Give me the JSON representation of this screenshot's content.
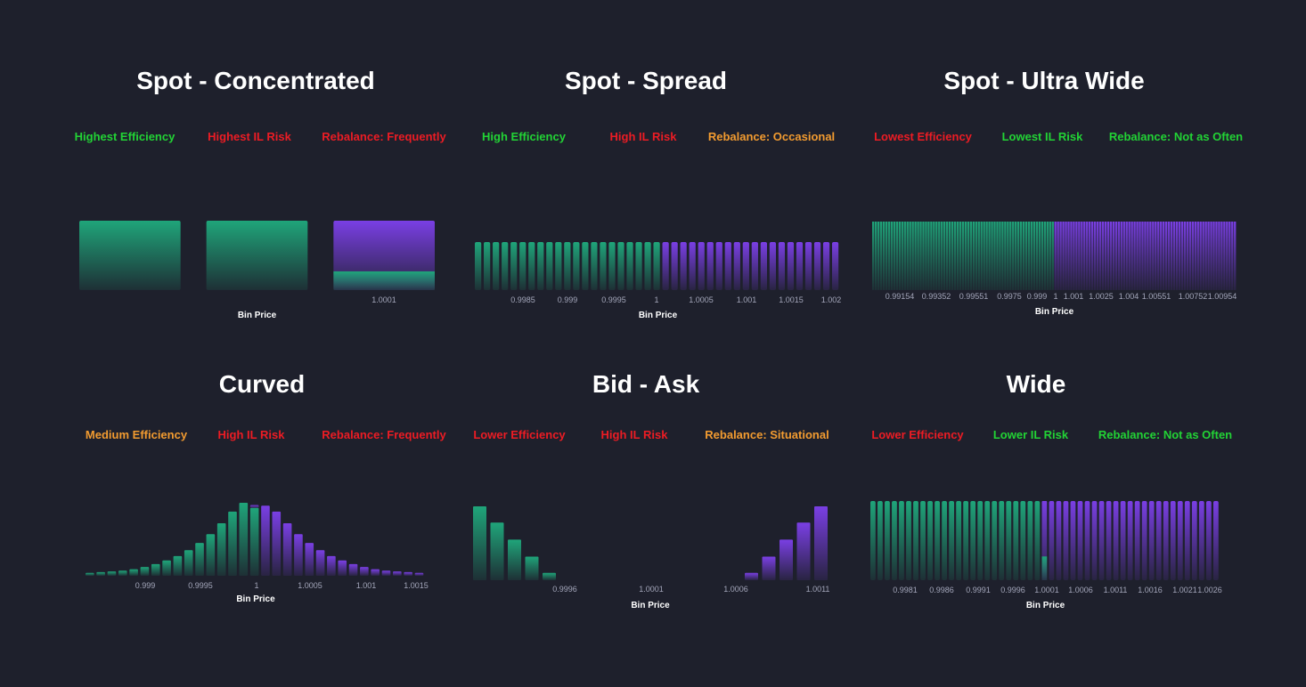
{
  "colors": {
    "background": "#1e202c",
    "green_bar": "#1fa57a",
    "purple_bar": "#7a3fe4",
    "good": "#22d335",
    "bad": "#ec1c24",
    "medium": "#f29b30",
    "tick_text": "#a3a6ba"
  },
  "panels": [
    {
      "id": "spot-concentrated",
      "title": "Spot - Concentrated",
      "metrics": [
        {
          "text": "Highest Efficiency",
          "level": "green"
        },
        {
          "text": "Highest IL Risk",
          "level": "red"
        },
        {
          "text": "Rebalance: Frequently",
          "level": "red"
        }
      ],
      "chart_data": {
        "type": "bar",
        "style": "spot-concentrated",
        "bins": 3,
        "green_values": [
          1,
          1,
          0.27
        ],
        "purple_values": [
          0,
          0,
          1
        ],
        "tick_labels": [
          "1.0001"
        ],
        "xlabel": "Bin Price"
      }
    },
    {
      "id": "spot-spread",
      "title": "Spot - Spread",
      "metrics": [
        {
          "text": "High Efficiency",
          "level": "green"
        },
        {
          "text": "High IL Risk",
          "level": "red"
        },
        {
          "text": "Rebalance: Occasional",
          "level": "orange"
        }
      ],
      "chart_data": {
        "type": "bar",
        "style": "spot-uniform",
        "green_bins": 21,
        "purple_bins": 20,
        "relative_height": 1,
        "tick_labels": [
          "0.9985",
          "0.999",
          "0.9995",
          "1",
          "1.0005",
          "1.001",
          "1.0015",
          "1.002"
        ],
        "xlabel": "Bin Price"
      }
    },
    {
      "id": "spot-ultra-wide",
      "title": "Spot - Ultra Wide",
      "metrics": [
        {
          "text": "Lowest Efficiency",
          "level": "red"
        },
        {
          "text": "Lowest IL Risk",
          "level": "green"
        },
        {
          "text": "Rebalance: Not as Often",
          "level": "green"
        }
      ],
      "chart_data": {
        "type": "bar",
        "style": "spot-dense",
        "green_bins": 69,
        "purple_bins": 69,
        "relative_height": 1,
        "tick_labels": [
          "0.99154",
          "0.99352",
          "0.99551",
          "0.9975",
          "0.999",
          "1",
          "1.001",
          "1.0025",
          "1.004",
          "1.00551",
          "1.00752",
          "1.00954"
        ],
        "xlabel": "Bin Price"
      }
    },
    {
      "id": "curved",
      "title": "Curved",
      "metrics": [
        {
          "text": "Medium Efficiency",
          "level": "orange"
        },
        {
          "text": "High IL Risk",
          "level": "red"
        },
        {
          "text": "Rebalance: Frequently",
          "level": "red"
        }
      ],
      "chart_data": {
        "type": "bar",
        "style": "curve",
        "green_values": [
          0.04,
          0.05,
          0.06,
          0.07,
          0.09,
          0.12,
          0.16,
          0.21,
          0.27,
          0.35,
          0.45,
          0.57,
          0.72,
          0.88,
          1.0,
          0.93
        ],
        "purple_values": [
          0.96,
          0.88,
          0.72,
          0.57,
          0.45,
          0.35,
          0.27,
          0.21,
          0.16,
          0.12,
          0.09,
          0.07,
          0.06,
          0.05,
          0.04
        ],
        "split_top_purple": 0.04,
        "tick_labels": [
          "0.999",
          "0.9995",
          "1",
          "1.0005",
          "1.001",
          "1.0015"
        ],
        "xlabel": "Bin Price"
      }
    },
    {
      "id": "bid-ask",
      "title": "Bid - Ask",
      "metrics": [
        {
          "text": "Lower Efficiency",
          "level": "red"
        },
        {
          "text": "High IL Risk",
          "level": "red"
        },
        {
          "text": "Rebalance: Situational",
          "level": "orange"
        }
      ],
      "chart_data": {
        "type": "bar",
        "style": "bid-ask",
        "green_values": [
          1.0,
          0.78,
          0.55,
          0.32,
          0.1
        ],
        "purple_values": [
          0.1,
          0.32,
          0.55,
          0.78,
          1.0
        ],
        "tick_labels": [
          "0.9996",
          "1.0001",
          "1.0006",
          "1.0011"
        ],
        "xlabel": "Bin Price"
      }
    },
    {
      "id": "wide",
      "title": "Wide",
      "metrics": [
        {
          "text": "Lower Efficiency",
          "level": "red"
        },
        {
          "text": "Lower IL Risk",
          "level": "green"
        },
        {
          "text": "Rebalance: Not as Often",
          "level": "green"
        }
      ],
      "chart_data": {
        "type": "bar",
        "style": "spot-uniform",
        "green_bins": 24,
        "purple_bins": 25,
        "relative_height": 1,
        "split_green_fraction": 0.3,
        "tick_labels": [
          "0.9981",
          "0.9986",
          "0.9991",
          "0.9996",
          "1.0001",
          "1.0006",
          "1.0011",
          "1.0016",
          "1.0021",
          "1.0026"
        ],
        "xlabel": "Bin Price"
      }
    }
  ]
}
